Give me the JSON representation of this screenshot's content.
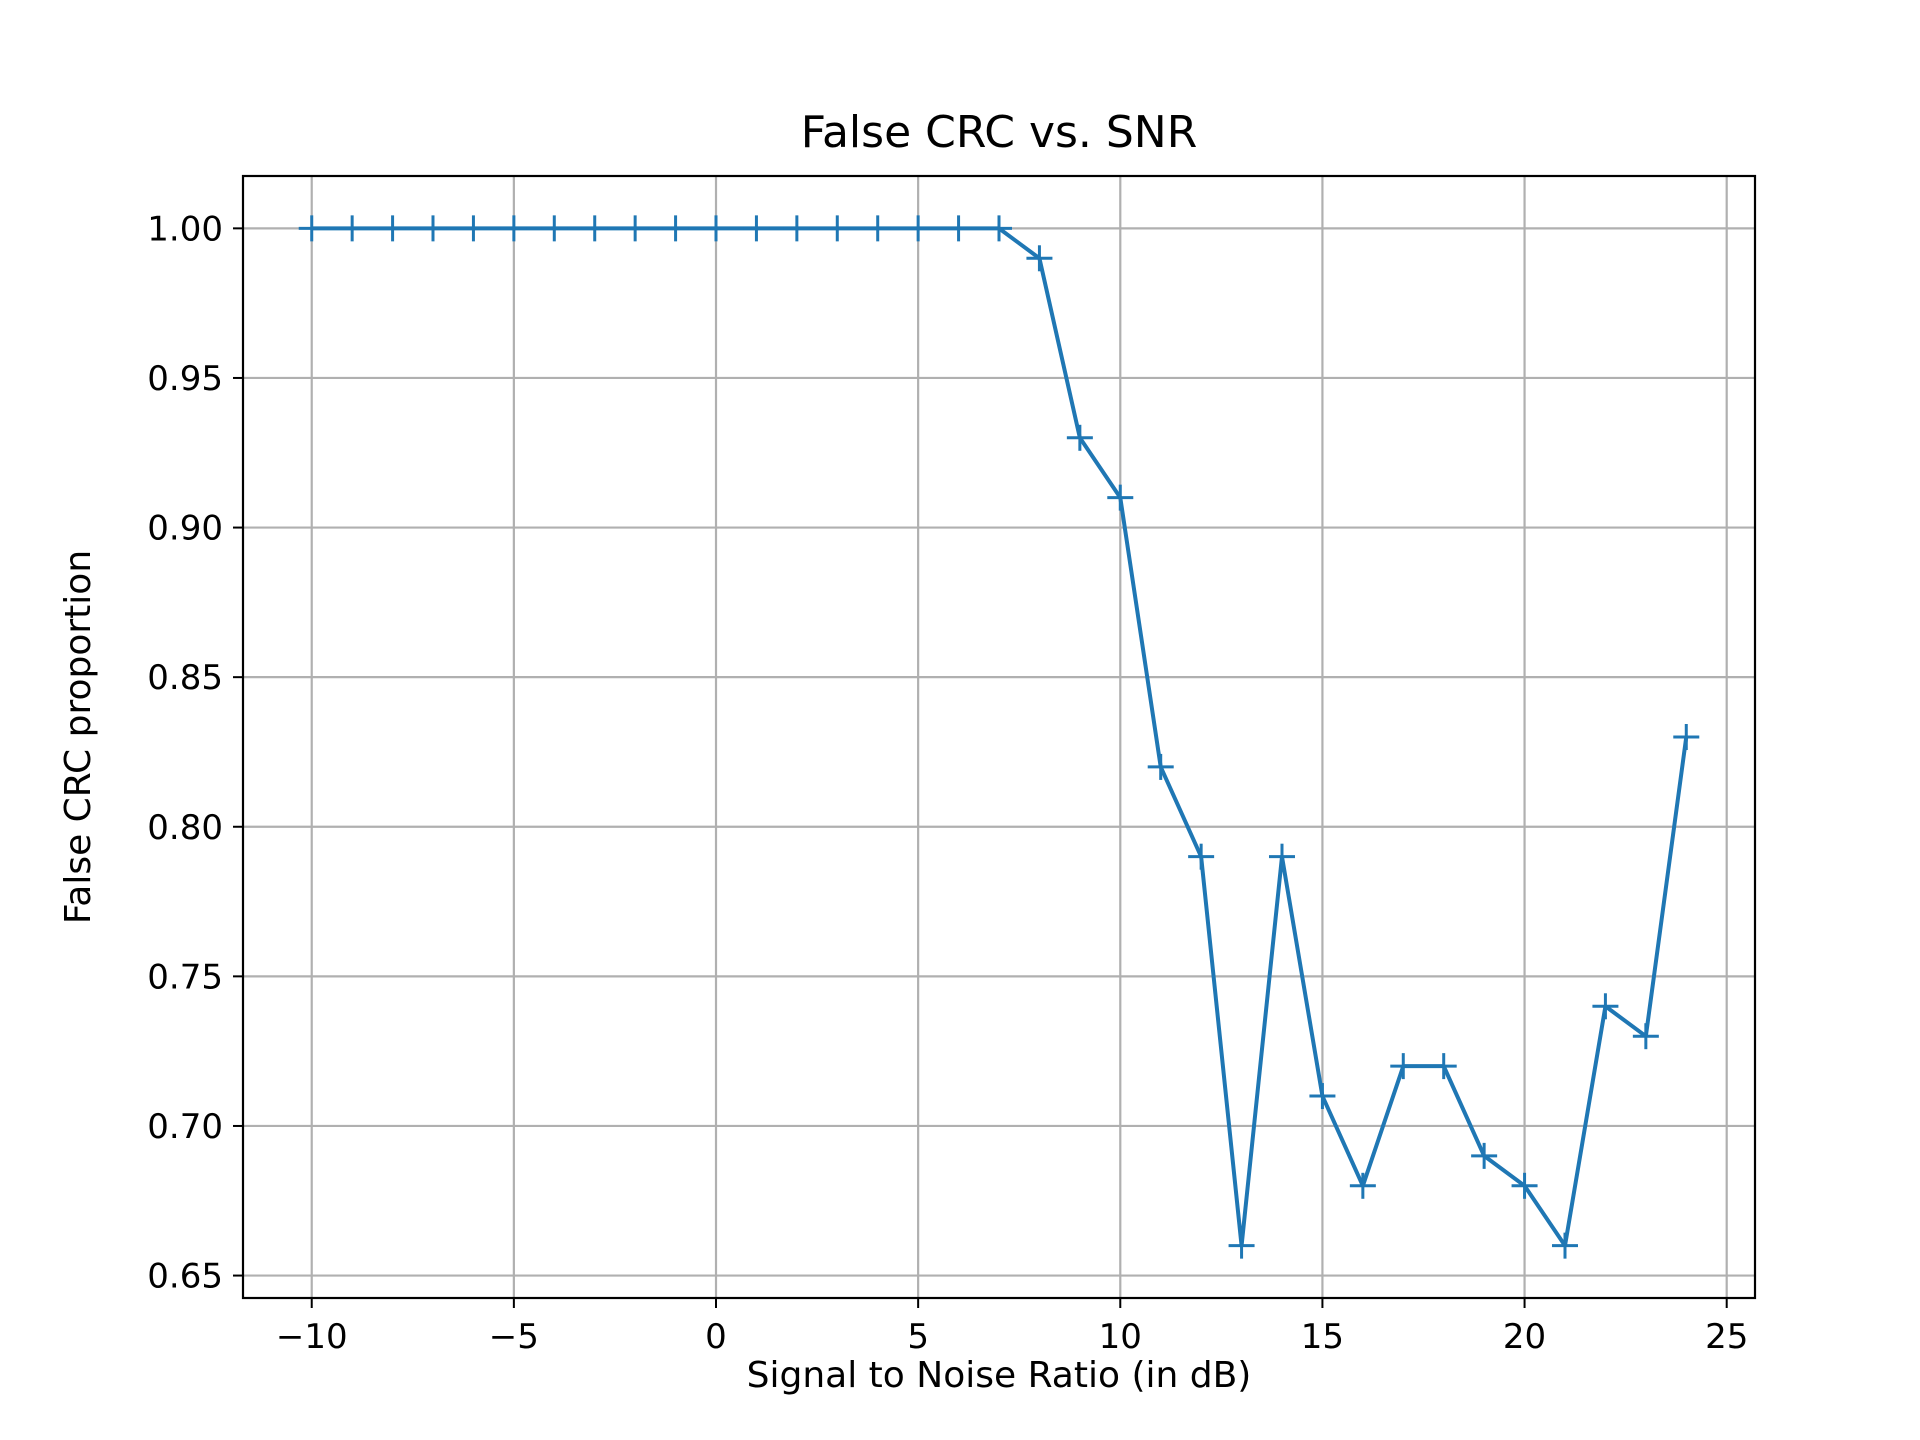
{
  "chart_data": {
    "type": "line",
    "title": "False CRC vs. SNR",
    "xlabel": "Signal to Noise Ratio (in dB)",
    "ylabel": "False CRC proportion",
    "xlim": [
      -11.7,
      25.7
    ],
    "ylim": [
      0.6425,
      1.0175
    ],
    "xticks": [
      -10,
      -5,
      0,
      5,
      10,
      15,
      20,
      25
    ],
    "xtick_labels": [
      "−10",
      "−5",
      "0",
      "5",
      "10",
      "15",
      "20",
      "25"
    ],
    "yticks": [
      0.65,
      0.7,
      0.75,
      0.8,
      0.85,
      0.9,
      0.95,
      1.0
    ],
    "ytick_labels": [
      "0.65",
      "0.70",
      "0.75",
      "0.80",
      "0.85",
      "0.90",
      "0.95",
      "1.00"
    ],
    "grid": true,
    "marker": "plus",
    "color": "#1f77b4",
    "x": [
      -10,
      -9,
      -8,
      -7,
      -6,
      -5,
      -4,
      -3,
      -2,
      -1,
      0,
      1,
      2,
      3,
      4,
      5,
      6,
      7,
      8,
      9,
      10,
      11,
      12,
      13,
      14,
      15,
      16,
      17,
      18,
      19,
      20,
      21,
      22,
      23,
      24
    ],
    "y": [
      1.0,
      1.0,
      1.0,
      1.0,
      1.0,
      1.0,
      1.0,
      1.0,
      1.0,
      1.0,
      1.0,
      1.0,
      1.0,
      1.0,
      1.0,
      1.0,
      1.0,
      1.0,
      0.99,
      0.93,
      0.91,
      0.82,
      0.79,
      0.66,
      0.79,
      0.71,
      0.68,
      0.72,
      0.72,
      0.69,
      0.68,
      0.66,
      0.74,
      0.73,
      0.83
    ]
  }
}
